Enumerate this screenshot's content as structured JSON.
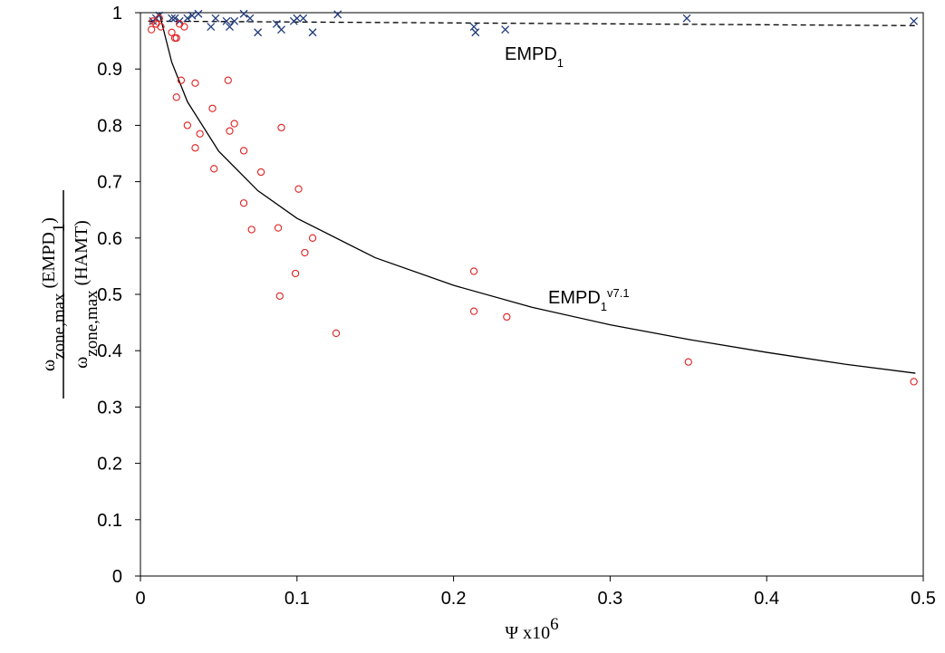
{
  "chart_data": {
    "type": "scatter",
    "xlim": [
      0,
      0.5
    ],
    "ylim": [
      0,
      1
    ],
    "xticks": [
      0,
      0.1,
      0.2,
      0.3,
      0.4,
      0.5
    ],
    "yticks": [
      0,
      0.1,
      0.2,
      0.3,
      0.4,
      0.5,
      0.6,
      0.7,
      0.8,
      0.9,
      1
    ],
    "x_label": [
      {
        "text": "Ψ x10"
      },
      {
        "sup": "6"
      }
    ],
    "y_label": {
      "numerator": [
        {
          "text": "ω"
        },
        {
          "sub": "zone,max"
        },
        {
          "text": " (EMPD"
        },
        {
          "sub": "1"
        },
        {
          "text": ")"
        }
      ],
      "denominator": [
        {
          "text": "ω"
        },
        {
          "sub": "zone,max"
        },
        {
          "text": " (HAMT)"
        }
      ]
    },
    "annotations": [
      [
        {
          "text": "EMPD"
        },
        {
          "sub": "1"
        }
      ],
      [
        {
          "text": "EMPD"
        },
        {
          "sub": "1"
        },
        {
          "sup": "v7.1"
        }
      ]
    ],
    "series": [
      {
        "marker": "x",
        "color": "#1f3a7a",
        "x": [
          0.008,
          0.01,
          0.012,
          0.02,
          0.022,
          0.025,
          0.03,
          0.033,
          0.037,
          0.045,
          0.048,
          0.055,
          0.057,
          0.06,
          0.066,
          0.07,
          0.075,
          0.087,
          0.09,
          0.098,
          0.1,
          0.104,
          0.11,
          0.126,
          0.213,
          0.214,
          0.233,
          0.349,
          0.494
        ],
        "values": [
          0.985,
          0.99,
          0.995,
          0.99,
          0.99,
          0.985,
          0.99,
          0.995,
          0.998,
          0.975,
          0.99,
          0.985,
          0.975,
          0.985,
          0.998,
          0.99,
          0.965,
          0.98,
          0.97,
          0.985,
          0.99,
          0.99,
          0.965,
          0.997,
          0.975,
          0.965,
          0.97,
          0.99,
          0.985
        ]
      },
      {
        "marker": "o",
        "color": "#e02020",
        "x": [
          0.007,
          0.008,
          0.01,
          0.012,
          0.013,
          0.02,
          0.022,
          0.023,
          0.025,
          0.028,
          0.026,
          0.035,
          0.056,
          0.023,
          0.046,
          0.03,
          0.057,
          0.06,
          0.09,
          0.038,
          0.035,
          0.066,
          0.047,
          0.077,
          0.101,
          0.066,
          0.071,
          0.088,
          0.11,
          0.105,
          0.099,
          0.089,
          0.125,
          0.213,
          0.213,
          0.234,
          0.35,
          0.494
        ],
        "values": [
          0.97,
          0.985,
          0.98,
          0.99,
          0.975,
          0.965,
          0.955,
          0.955,
          0.98,
          0.975,
          0.88,
          0.875,
          0.88,
          0.85,
          0.83,
          0.8,
          0.79,
          0.803,
          0.796,
          0.785,
          0.76,
          0.755,
          0.723,
          0.717,
          0.687,
          0.662,
          0.615,
          0.618,
          0.6,
          0.574,
          0.537,
          0.497,
          0.431,
          0.541,
          0.47,
          0.46,
          0.38,
          0.345
        ]
      }
    ],
    "lines": [
      {
        "style": "dashed",
        "color": "#000000",
        "x": [
          0.005,
          0.495
        ],
        "values": [
          0.985,
          0.977
        ]
      },
      {
        "style": "solid",
        "color": "#000000",
        "x": [
          0.012,
          0.02,
          0.03,
          0.05,
          0.075,
          0.1,
          0.15,
          0.2,
          0.25,
          0.3,
          0.35,
          0.4,
          0.45,
          0.495
        ],
        "values": [
          1.0,
          0.912,
          0.842,
          0.754,
          0.684,
          0.635,
          0.565,
          0.516,
          0.477,
          0.446,
          0.42,
          0.397,
          0.376,
          0.36
        ]
      }
    ]
  }
}
